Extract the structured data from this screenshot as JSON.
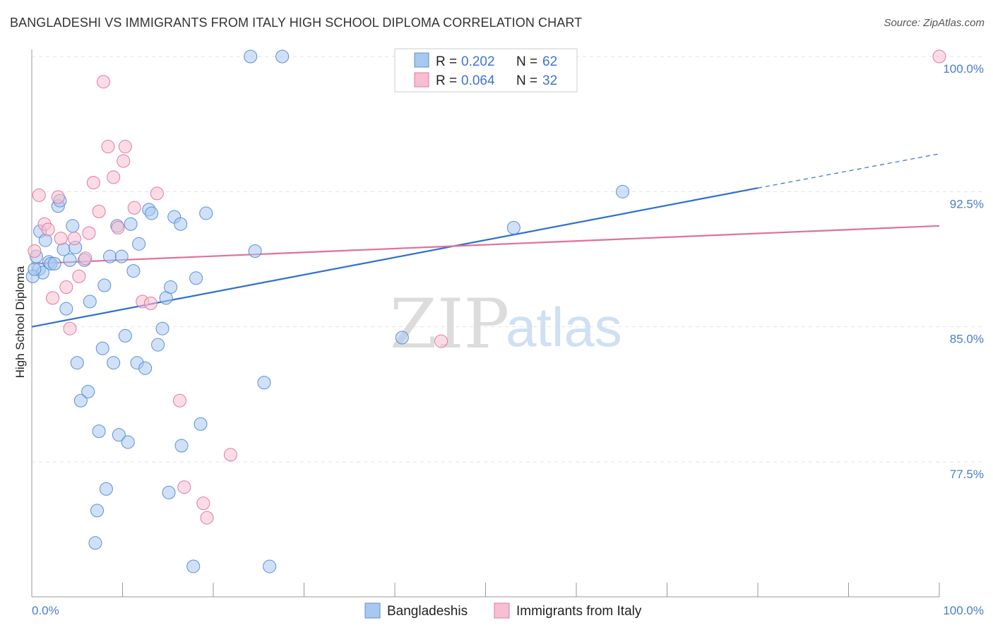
{
  "header": {
    "title": "BANGLADESHI VS IMMIGRANTS FROM ITALY HIGH SCHOOL DIPLOMA CORRELATION CHART",
    "source": "Source: ZipAtlas.com"
  },
  "watermark": {
    "zip": "ZIP",
    "atlas": "atlas"
  },
  "stats": {
    "r_label": "R =",
    "n_label": "N =",
    "rows": [
      {
        "r": "0.202",
        "n": "62",
        "color": "#a9c8f0",
        "stroke": "#5b8fd6"
      },
      {
        "r": "0.064",
        "n": "32",
        "color": "#f7bfd0",
        "stroke": "#e07aa0"
      }
    ]
  },
  "chart_data": {
    "type": "scatter",
    "title": "BANGLADESHI VS IMMIGRANTS FROM ITALY HIGH SCHOOL DIPLOMA CORRELATION CHART",
    "xlabel": "",
    "ylabel": "High School Diploma",
    "xlim": [
      0,
      100
    ],
    "ylim": [
      71.5,
      100.7
    ],
    "x_tick_labels": [
      "0.0%",
      "100.0%"
    ],
    "y_ticks": [
      {
        "value": 77.5,
        "label": "77.5%"
      },
      {
        "value": 85.0,
        "label": "85.0%"
      },
      {
        "value": 92.5,
        "label": "92.5%"
      },
      {
        "value": 100.0,
        "label": "100.0%"
      }
    ],
    "grid": true,
    "legend_position": "bottom-center",
    "series": [
      {
        "name": "Bangladeshis",
        "color": "#a9c8f0",
        "stroke": "#5b8fd6",
        "line_color": "#2f6fd0",
        "trend": {
          "x0": 0,
          "y0": 85.0,
          "x1": 80,
          "y1": 92.7,
          "dash_to_x": 100,
          "dash_to_y": 94.6
        },
        "points": [
          [
            0.5,
            88.9
          ],
          [
            0.8,
            88.2
          ],
          [
            1.2,
            88.0
          ],
          [
            0.9,
            90.3
          ],
          [
            1.5,
            89.8
          ],
          [
            1.9,
            88.6
          ],
          [
            2.1,
            88.5
          ],
          [
            2.5,
            88.5
          ],
          [
            2.9,
            91.7
          ],
          [
            3.1,
            92.0
          ],
          [
            3.5,
            89.3
          ],
          [
            3.8,
            86.0
          ],
          [
            4.2,
            88.7
          ],
          [
            4.5,
            90.6
          ],
          [
            4.8,
            89.4
          ],
          [
            5.0,
            83.0
          ],
          [
            5.4,
            80.9
          ],
          [
            5.8,
            88.7
          ],
          [
            6.2,
            81.4
          ],
          [
            6.4,
            86.4
          ],
          [
            7.0,
            73.0
          ],
          [
            7.2,
            74.8
          ],
          [
            7.4,
            79.2
          ],
          [
            7.8,
            83.8
          ],
          [
            8.0,
            87.3
          ],
          [
            8.2,
            76.0
          ],
          [
            8.6,
            88.9
          ],
          [
            9.0,
            83.0
          ],
          [
            9.4,
            90.6
          ],
          [
            9.6,
            79.0
          ],
          [
            9.9,
            88.9
          ],
          [
            10.3,
            84.5
          ],
          [
            10.6,
            78.6
          ],
          [
            10.9,
            90.7
          ],
          [
            11.2,
            88.1
          ],
          [
            11.6,
            83.0
          ],
          [
            11.8,
            89.6
          ],
          [
            12.5,
            82.7
          ],
          [
            12.9,
            91.5
          ],
          [
            13.2,
            91.3
          ],
          [
            13.9,
            84.0
          ],
          [
            14.4,
            84.9
          ],
          [
            14.8,
            86.6
          ],
          [
            15.1,
            75.8
          ],
          [
            15.3,
            87.2
          ],
          [
            15.7,
            91.1
          ],
          [
            16.4,
            90.7
          ],
          [
            16.5,
            78.4
          ],
          [
            17.8,
            71.7
          ],
          [
            18.1,
            87.7
          ],
          [
            18.6,
            79.6
          ],
          [
            19.2,
            91.3
          ],
          [
            24.1,
            100.0
          ],
          [
            24.6,
            89.2
          ],
          [
            25.6,
            81.9
          ],
          [
            26.2,
            71.7
          ],
          [
            27.6,
            100.0
          ],
          [
            40.8,
            84.4
          ],
          [
            53.1,
            90.5
          ],
          [
            65.1,
            92.5
          ],
          [
            0.1,
            87.8
          ],
          [
            0.3,
            88.2
          ]
        ]
      },
      {
        "name": "Immigrants from Italy",
        "color": "#f7bfd0",
        "stroke": "#e07aa0",
        "line_color": "#e0709b",
        "trend": {
          "x0": 0,
          "y0": 88.5,
          "x1": 100,
          "y1": 90.6
        },
        "points": [
          [
            0.3,
            89.2
          ],
          [
            0.8,
            92.3
          ],
          [
            1.4,
            90.7
          ],
          [
            1.8,
            90.4
          ],
          [
            2.3,
            86.6
          ],
          [
            2.9,
            92.2
          ],
          [
            3.2,
            89.9
          ],
          [
            3.8,
            87.2
          ],
          [
            4.2,
            84.9
          ],
          [
            4.7,
            89.9
          ],
          [
            5.2,
            87.8
          ],
          [
            5.9,
            88.8
          ],
          [
            6.3,
            90.2
          ],
          [
            6.8,
            93.0
          ],
          [
            7.4,
            91.4
          ],
          [
            7.9,
            98.6
          ],
          [
            8.4,
            95.0
          ],
          [
            9.0,
            93.3
          ],
          [
            9.5,
            90.5
          ],
          [
            10.1,
            94.2
          ],
          [
            10.3,
            95.0
          ],
          [
            11.3,
            91.6
          ],
          [
            12.2,
            86.4
          ],
          [
            13.1,
            86.3
          ],
          [
            13.8,
            92.4
          ],
          [
            16.3,
            80.9
          ],
          [
            16.8,
            76.1
          ],
          [
            18.9,
            75.2
          ],
          [
            19.3,
            74.4
          ],
          [
            21.9,
            77.9
          ],
          [
            45.1,
            84.2
          ],
          [
            100.0,
            100.0
          ]
        ]
      }
    ]
  }
}
